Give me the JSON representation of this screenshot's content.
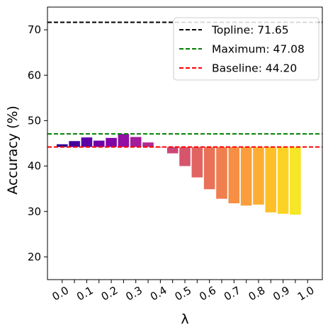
{
  "chart_data": {
    "type": "bar",
    "title": "",
    "xlabel": "λ",
    "ylabel": "Accuracy (%)",
    "ylim": [
      15,
      75
    ],
    "yticks": [
      20,
      30,
      40,
      50,
      60,
      70
    ],
    "xtick_labels": [
      "0.0",
      "0.1",
      "0.2",
      "0.3",
      "0.4",
      "0.5",
      "0.6",
      "0.7",
      "0.8",
      "0.9",
      "1.0"
    ],
    "xrange": [
      -0.06,
      1.06
    ],
    "bar_base": 44.2,
    "bar_width": 0.045,
    "bars": [
      {
        "x": 0.0,
        "value": 44.8,
        "color": "#2c0594"
      },
      {
        "x": 0.05,
        "value": 45.5,
        "color": "#43039e"
      },
      {
        "x": 0.1,
        "value": 46.3,
        "color": "#5c01a6"
      },
      {
        "x": 0.15,
        "value": 45.6,
        "color": "#6f00a8"
      },
      {
        "x": 0.2,
        "value": 46.2,
        "color": "#8104a7"
      },
      {
        "x": 0.25,
        "value": 47.08,
        "color": "#920fa3"
      },
      {
        "x": 0.3,
        "value": 46.4,
        "color": "#a31e9a"
      },
      {
        "x": 0.35,
        "value": 45.2,
        "color": "#b12a90"
      },
      {
        "x": 0.4,
        "value": 44.1,
        "color": "#bf3984"
      },
      {
        "x": 0.45,
        "value": 42.8,
        "color": "#cc4778"
      },
      {
        "x": 0.5,
        "value": 40.0,
        "color": "#d6556d"
      },
      {
        "x": 0.55,
        "value": 37.5,
        "color": "#e16462"
      },
      {
        "x": 0.6,
        "value": 34.9,
        "color": "#e97158"
      },
      {
        "x": 0.65,
        "value": 32.8,
        "color": "#f07f4f"
      },
      {
        "x": 0.7,
        "value": 31.8,
        "color": "#f68f44"
      },
      {
        "x": 0.75,
        "value": 31.3,
        "color": "#fa9e3b"
      },
      {
        "x": 0.8,
        "value": 31.5,
        "color": "#fdae32"
      },
      {
        "x": 0.85,
        "value": 29.8,
        "color": "#fdc029"
      },
      {
        "x": 0.9,
        "value": 29.5,
        "color": "#fbd324"
      },
      {
        "x": 0.95,
        "value": 29.3,
        "color": "#f5e626"
      }
    ],
    "reference_lines": [
      {
        "name": "Topline: 71.65",
        "value": 71.65,
        "color": "#000000"
      },
      {
        "name": "Maximum: 47.08",
        "value": 47.08,
        "color": "#008000"
      },
      {
        "name": "Baseline: 44.20",
        "value": 44.2,
        "color": "#ff0000"
      }
    ],
    "legend_position": "top-right",
    "grid": false
  }
}
